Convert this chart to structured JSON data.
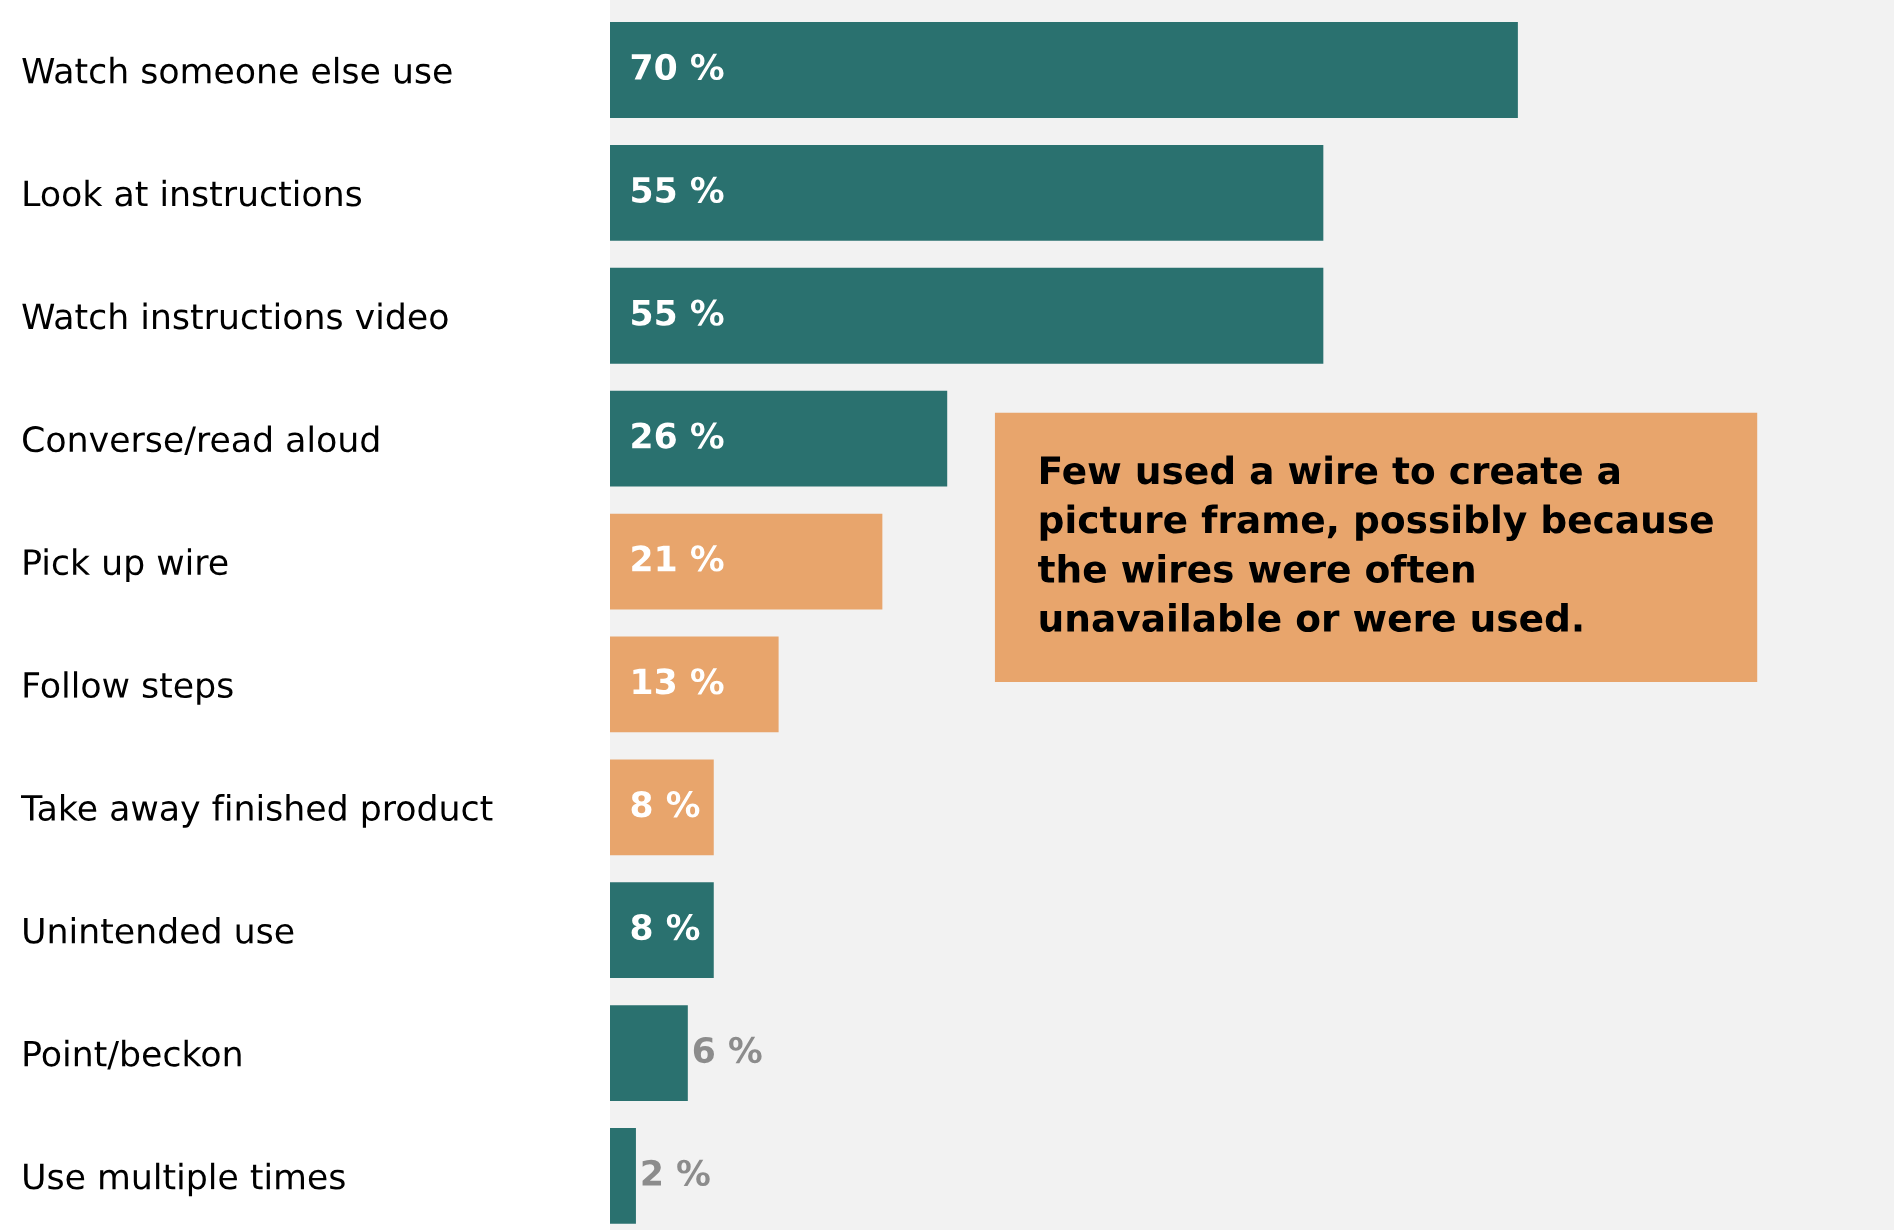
{
  "chart_data": {
    "type": "bar",
    "orientation": "horizontal",
    "categories": [
      "Watch someone else use",
      "Look at instructions",
      "Watch instructions video",
      "Converse/read aloud",
      "Pick up wire",
      "Follow steps",
      "Take away finished product",
      "Unintended use",
      "Point/beckon",
      "Use multiple times"
    ],
    "values": [
      70,
      55,
      55,
      26,
      21,
      13,
      8,
      8,
      6,
      2
    ],
    "colors": [
      "#2a716f",
      "#2a716f",
      "#2a716f",
      "#2a716f",
      "#e8a56c",
      "#e8a56c",
      "#e8a56c",
      "#2a716f",
      "#2a716f",
      "#2a716f"
    ],
    "value_labels": [
      "70 %",
      "55 %",
      "55 %",
      "26 %",
      "21 %",
      "13 %",
      "8 %",
      "8 %",
      "6 %",
      "2 %"
    ],
    "relative": false,
    "xlim": [
      0,
      99
    ],
    "tick_labels": "y",
    "grid": false,
    "legend": false,
    "annotations": [
      "Few used a wire to create a\npicture frame, possibly because\nthe wires were often\nunavailable or were used."
    ]
  }
}
